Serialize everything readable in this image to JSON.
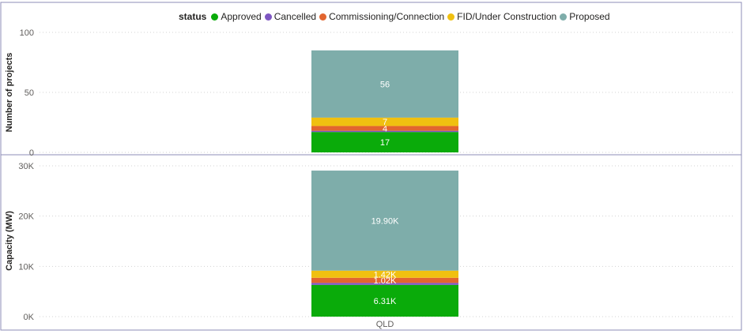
{
  "legend": {
    "title": "status",
    "items": [
      {
        "label": "Approved",
        "color": "#0aab0a"
      },
      {
        "label": "Cancelled",
        "color": "#7e57c2"
      },
      {
        "label": "Commissioning/Connection",
        "color": "#e2652f"
      },
      {
        "label": "FID/Under Construction",
        "color": "#f0c010"
      },
      {
        "label": "Proposed",
        "color": "#7eadaa"
      }
    ]
  },
  "chart_data": [
    {
      "type": "bar",
      "stacked": true,
      "categories": [
        "QLD"
      ],
      "ylabel": "Number of projects",
      "ylim": [
        0,
        100
      ],
      "yticks": [
        0,
        50,
        100
      ],
      "ytick_labels": [
        "0",
        "50",
        "100"
      ],
      "grid": true,
      "series": [
        {
          "name": "Approved",
          "values": [
            17
          ],
          "label": "17",
          "color": "#0aab0a"
        },
        {
          "name": "Cancelled",
          "values": [
            1
          ],
          "label": "",
          "color": "#7e57c2"
        },
        {
          "name": "Commissioning/Connection",
          "values": [
            4
          ],
          "label": "4",
          "color": "#e2652f"
        },
        {
          "name": "FID/Under Construction",
          "values": [
            7
          ],
          "label": "7",
          "color": "#f0c010"
        },
        {
          "name": "Proposed",
          "values": [
            56
          ],
          "label": "56",
          "color": "#7eadaa"
        }
      ]
    },
    {
      "type": "bar",
      "stacked": true,
      "categories": [
        "QLD"
      ],
      "ylabel": "Capacity (MW)",
      "ylim": [
        0,
        30000
      ],
      "yticks": [
        0,
        10000,
        20000,
        30000
      ],
      "ytick_labels": [
        "0K",
        "10K",
        "20K",
        "30K"
      ],
      "grid": true,
      "series": [
        {
          "name": "Approved",
          "values": [
            6310
          ],
          "label": "6.31K",
          "color": "#0aab0a"
        },
        {
          "name": "Cancelled",
          "values": [
            400
          ],
          "label": "",
          "color": "#7e57c2"
        },
        {
          "name": "Commissioning/Connection",
          "values": [
            1020
          ],
          "label": "1.02K",
          "color": "#e2652f"
        },
        {
          "name": "FID/Under Construction",
          "values": [
            1420
          ],
          "label": "1.42K",
          "color": "#f0c010"
        },
        {
          "name": "Proposed",
          "values": [
            19900
          ],
          "label": "19.90K",
          "color": "#7eadaa"
        }
      ]
    }
  ]
}
